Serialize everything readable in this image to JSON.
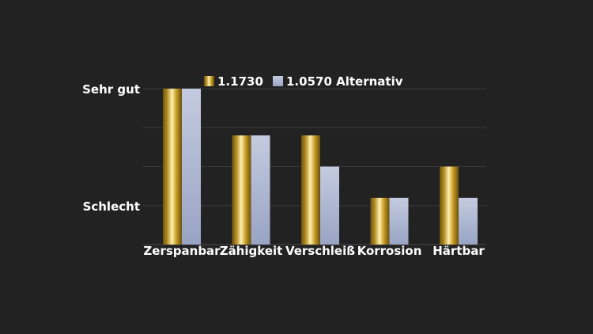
{
  "chart_data": {
    "type": "bar",
    "title": "",
    "xlabel": "",
    "ylabel": "",
    "categories": [
      "Zerspanbar",
      "Zähigkeit",
      "Verschleiß",
      "Korrosion",
      "Härtbar"
    ],
    "series": [
      {
        "name": "1.1730",
        "values": [
          4,
          2.8,
          2.8,
          1.2,
          2
        ],
        "color": "#c9a227"
      },
      {
        "name": "1.0570 Alternativ",
        "values": [
          4,
          2.8,
          2,
          1.2,
          1.2
        ],
        "color": "#b3bdd6"
      }
    ],
    "ylim": [
      0,
      4
    ],
    "y_tick_labels": [
      {
        "value": 4,
        "label": "Sehr gut"
      },
      {
        "value": 1,
        "label": "Schlecht"
      }
    ],
    "grid": true,
    "legend_position": "top"
  }
}
